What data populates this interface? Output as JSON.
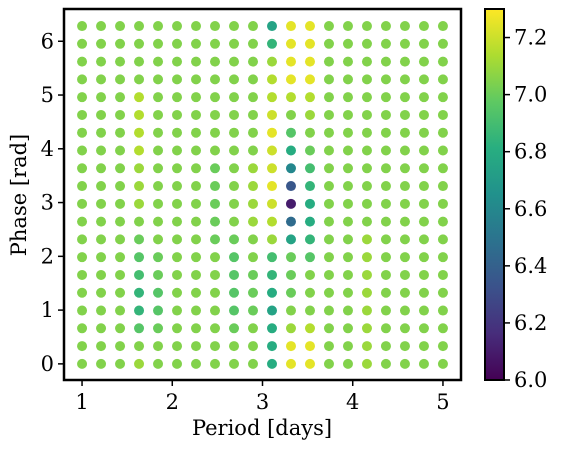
{
  "chart_data": {
    "type": "scatter",
    "title": "",
    "xlabel": "Period [days]",
    "ylabel": "Phase [rad]",
    "xlim": [
      0.8,
      5.2
    ],
    "ylim": [
      -0.3,
      6.6
    ],
    "xticks": [
      1,
      2,
      3,
      4,
      5
    ],
    "yticks": [
      0,
      1,
      2,
      3,
      4,
      5,
      6
    ],
    "grid": false,
    "colormap": "viridis",
    "color_range": [
      6.0,
      7.3
    ],
    "colorbar_ticks": [
      6.0,
      6.2,
      6.4,
      6.6,
      6.8,
      7.0,
      7.2
    ],
    "periods": [
      1.0,
      1.2105,
      1.4211,
      1.6316,
      1.8421,
      2.0526,
      2.2632,
      2.4737,
      2.6842,
      2.8947,
      3.1053,
      3.3158,
      3.5263,
      3.7368,
      3.9474,
      4.1579,
      4.3684,
      4.5789,
      4.7895,
      5.0
    ],
    "phases": [
      0.0,
      0.3307,
      0.6614,
      0.9921,
      1.3228,
      1.6535,
      1.9842,
      2.3149,
      2.6456,
      2.9762,
      3.3069,
      3.6376,
      3.9683,
      4.299,
      4.6297,
      4.9604,
      5.2911,
      5.6218,
      5.9525,
      6.2832
    ],
    "base_value": 7.05,
    "values_by_period_column": [
      [
        7.05,
        7.05,
        7.05,
        7.05,
        7.05,
        7.05,
        7.05,
        7.05,
        7.05,
        7.05,
        7.05,
        7.05,
        7.05,
        7.05,
        7.05,
        7.05,
        7.05,
        7.05,
        7.05,
        7.05
      ],
      [
        7.05,
        7.05,
        7.05,
        7.05,
        7.05,
        7.05,
        7.05,
        7.05,
        7.05,
        7.05,
        7.05,
        7.05,
        7.05,
        7.05,
        7.05,
        7.05,
        7.05,
        7.05,
        7.05,
        7.05
      ],
      [
        7.05,
        7.05,
        7.05,
        7.05,
        7.05,
        7.05,
        7.05,
        7.05,
        7.05,
        7.05,
        7.05,
        7.05,
        7.05,
        7.05,
        7.05,
        7.05,
        7.05,
        7.05,
        7.05,
        7.05
      ],
      [
        7.1,
        7.05,
        6.95,
        6.85,
        6.85,
        6.9,
        6.95,
        7.0,
        7.05,
        7.1,
        7.1,
        7.1,
        7.15,
        7.15,
        7.15,
        7.15,
        7.05,
        7.05,
        7.05,
        7.05
      ],
      [
        7.05,
        7.05,
        7.0,
        6.95,
        6.95,
        7.0,
        7.0,
        7.05,
        7.05,
        7.05,
        7.05,
        7.05,
        7.05,
        7.05,
        7.05,
        7.05,
        7.05,
        7.05,
        7.05,
        7.05
      ],
      [
        7.05,
        7.05,
        7.05,
        7.05,
        7.05,
        7.05,
        7.05,
        7.05,
        7.05,
        7.05,
        7.05,
        7.05,
        7.05,
        7.05,
        7.05,
        7.05,
        7.05,
        7.05,
        7.05,
        7.05
      ],
      [
        7.05,
        7.05,
        7.05,
        7.05,
        7.05,
        7.05,
        7.05,
        7.05,
        7.05,
        7.05,
        7.05,
        7.05,
        7.05,
        7.05,
        7.05,
        7.05,
        7.05,
        7.05,
        7.05,
        7.05
      ],
      [
        7.05,
        7.05,
        7.05,
        7.05,
        7.05,
        7.05,
        7.05,
        7.0,
        7.0,
        7.0,
        7.0,
        7.0,
        7.05,
        7.05,
        7.05,
        7.05,
        7.05,
        7.05,
        7.05,
        7.05
      ],
      [
        7.05,
        7.05,
        7.0,
        6.95,
        6.95,
        6.95,
        6.95,
        7.0,
        7.05,
        7.05,
        7.05,
        7.05,
        7.05,
        7.05,
        7.05,
        7.05,
        7.05,
        7.05,
        7.05,
        7.05
      ],
      [
        7.05,
        7.05,
        7.05,
        7.0,
        7.0,
        7.0,
        7.05,
        7.05,
        7.1,
        7.1,
        7.1,
        7.1,
        7.05,
        7.05,
        7.05,
        7.05,
        7.05,
        7.05,
        7.05,
        7.05
      ],
      [
        6.8,
        6.8,
        6.8,
        6.75,
        6.8,
        6.85,
        6.9,
        7.1,
        7.15,
        7.2,
        7.25,
        7.2,
        7.2,
        7.25,
        7.2,
        7.15,
        7.15,
        7.1,
        6.85,
        6.75
      ],
      [
        7.25,
        7.25,
        7.1,
        7.05,
        7.0,
        7.0,
        7.0,
        6.75,
        6.45,
        6.1,
        6.35,
        6.6,
        6.8,
        6.95,
        7.05,
        7.15,
        7.25,
        7.25,
        7.25,
        7.25
      ],
      [
        7.25,
        7.25,
        7.15,
        7.05,
        7.05,
        7.05,
        6.95,
        6.85,
        6.8,
        6.8,
        6.85,
        6.9,
        7.0,
        7.05,
        7.1,
        7.15,
        7.25,
        7.25,
        7.25,
        7.25
      ],
      [
        7.05,
        7.05,
        7.05,
        7.05,
        7.05,
        7.05,
        7.05,
        7.05,
        7.05,
        7.05,
        7.05,
        7.05,
        7.05,
        7.05,
        7.05,
        7.05,
        7.05,
        7.05,
        7.05,
        7.05
      ],
      [
        7.05,
        7.05,
        7.05,
        7.05,
        7.05,
        7.05,
        7.05,
        7.05,
        7.05,
        7.05,
        7.05,
        7.05,
        7.05,
        7.05,
        7.05,
        7.05,
        7.05,
        7.05,
        7.05,
        7.05
      ],
      [
        7.1,
        7.1,
        7.1,
        7.1,
        7.1,
        7.1,
        7.1,
        7.1,
        7.05,
        7.05,
        7.05,
        7.05,
        7.05,
        7.05,
        7.05,
        7.05,
        7.05,
        7.05,
        7.05,
        7.05
      ],
      [
        7.05,
        7.05,
        7.05,
        7.05,
        7.05,
        7.05,
        7.05,
        7.05,
        7.05,
        7.05,
        7.05,
        7.05,
        7.05,
        7.05,
        7.05,
        7.05,
        7.05,
        7.05,
        7.05,
        7.05
      ],
      [
        7.05,
        7.05,
        7.05,
        7.05,
        7.05,
        7.05,
        7.05,
        7.05,
        7.05,
        7.05,
        7.05,
        7.05,
        7.05,
        7.05,
        7.05,
        7.05,
        7.05,
        7.05,
        7.05,
        7.05
      ],
      [
        7.05,
        7.05,
        7.05,
        7.05,
        7.05,
        7.05,
        7.05,
        7.05,
        7.05,
        7.05,
        7.05,
        7.05,
        7.05,
        7.05,
        7.05,
        7.05,
        7.05,
        7.05,
        7.05,
        7.05
      ],
      [
        7.05,
        7.05,
        7.05,
        7.05,
        7.05,
        7.05,
        7.05,
        7.05,
        7.05,
        7.05,
        7.05,
        7.05,
        7.05,
        7.05,
        7.05,
        7.05,
        7.05,
        7.05,
        7.05,
        7.05
      ]
    ]
  }
}
